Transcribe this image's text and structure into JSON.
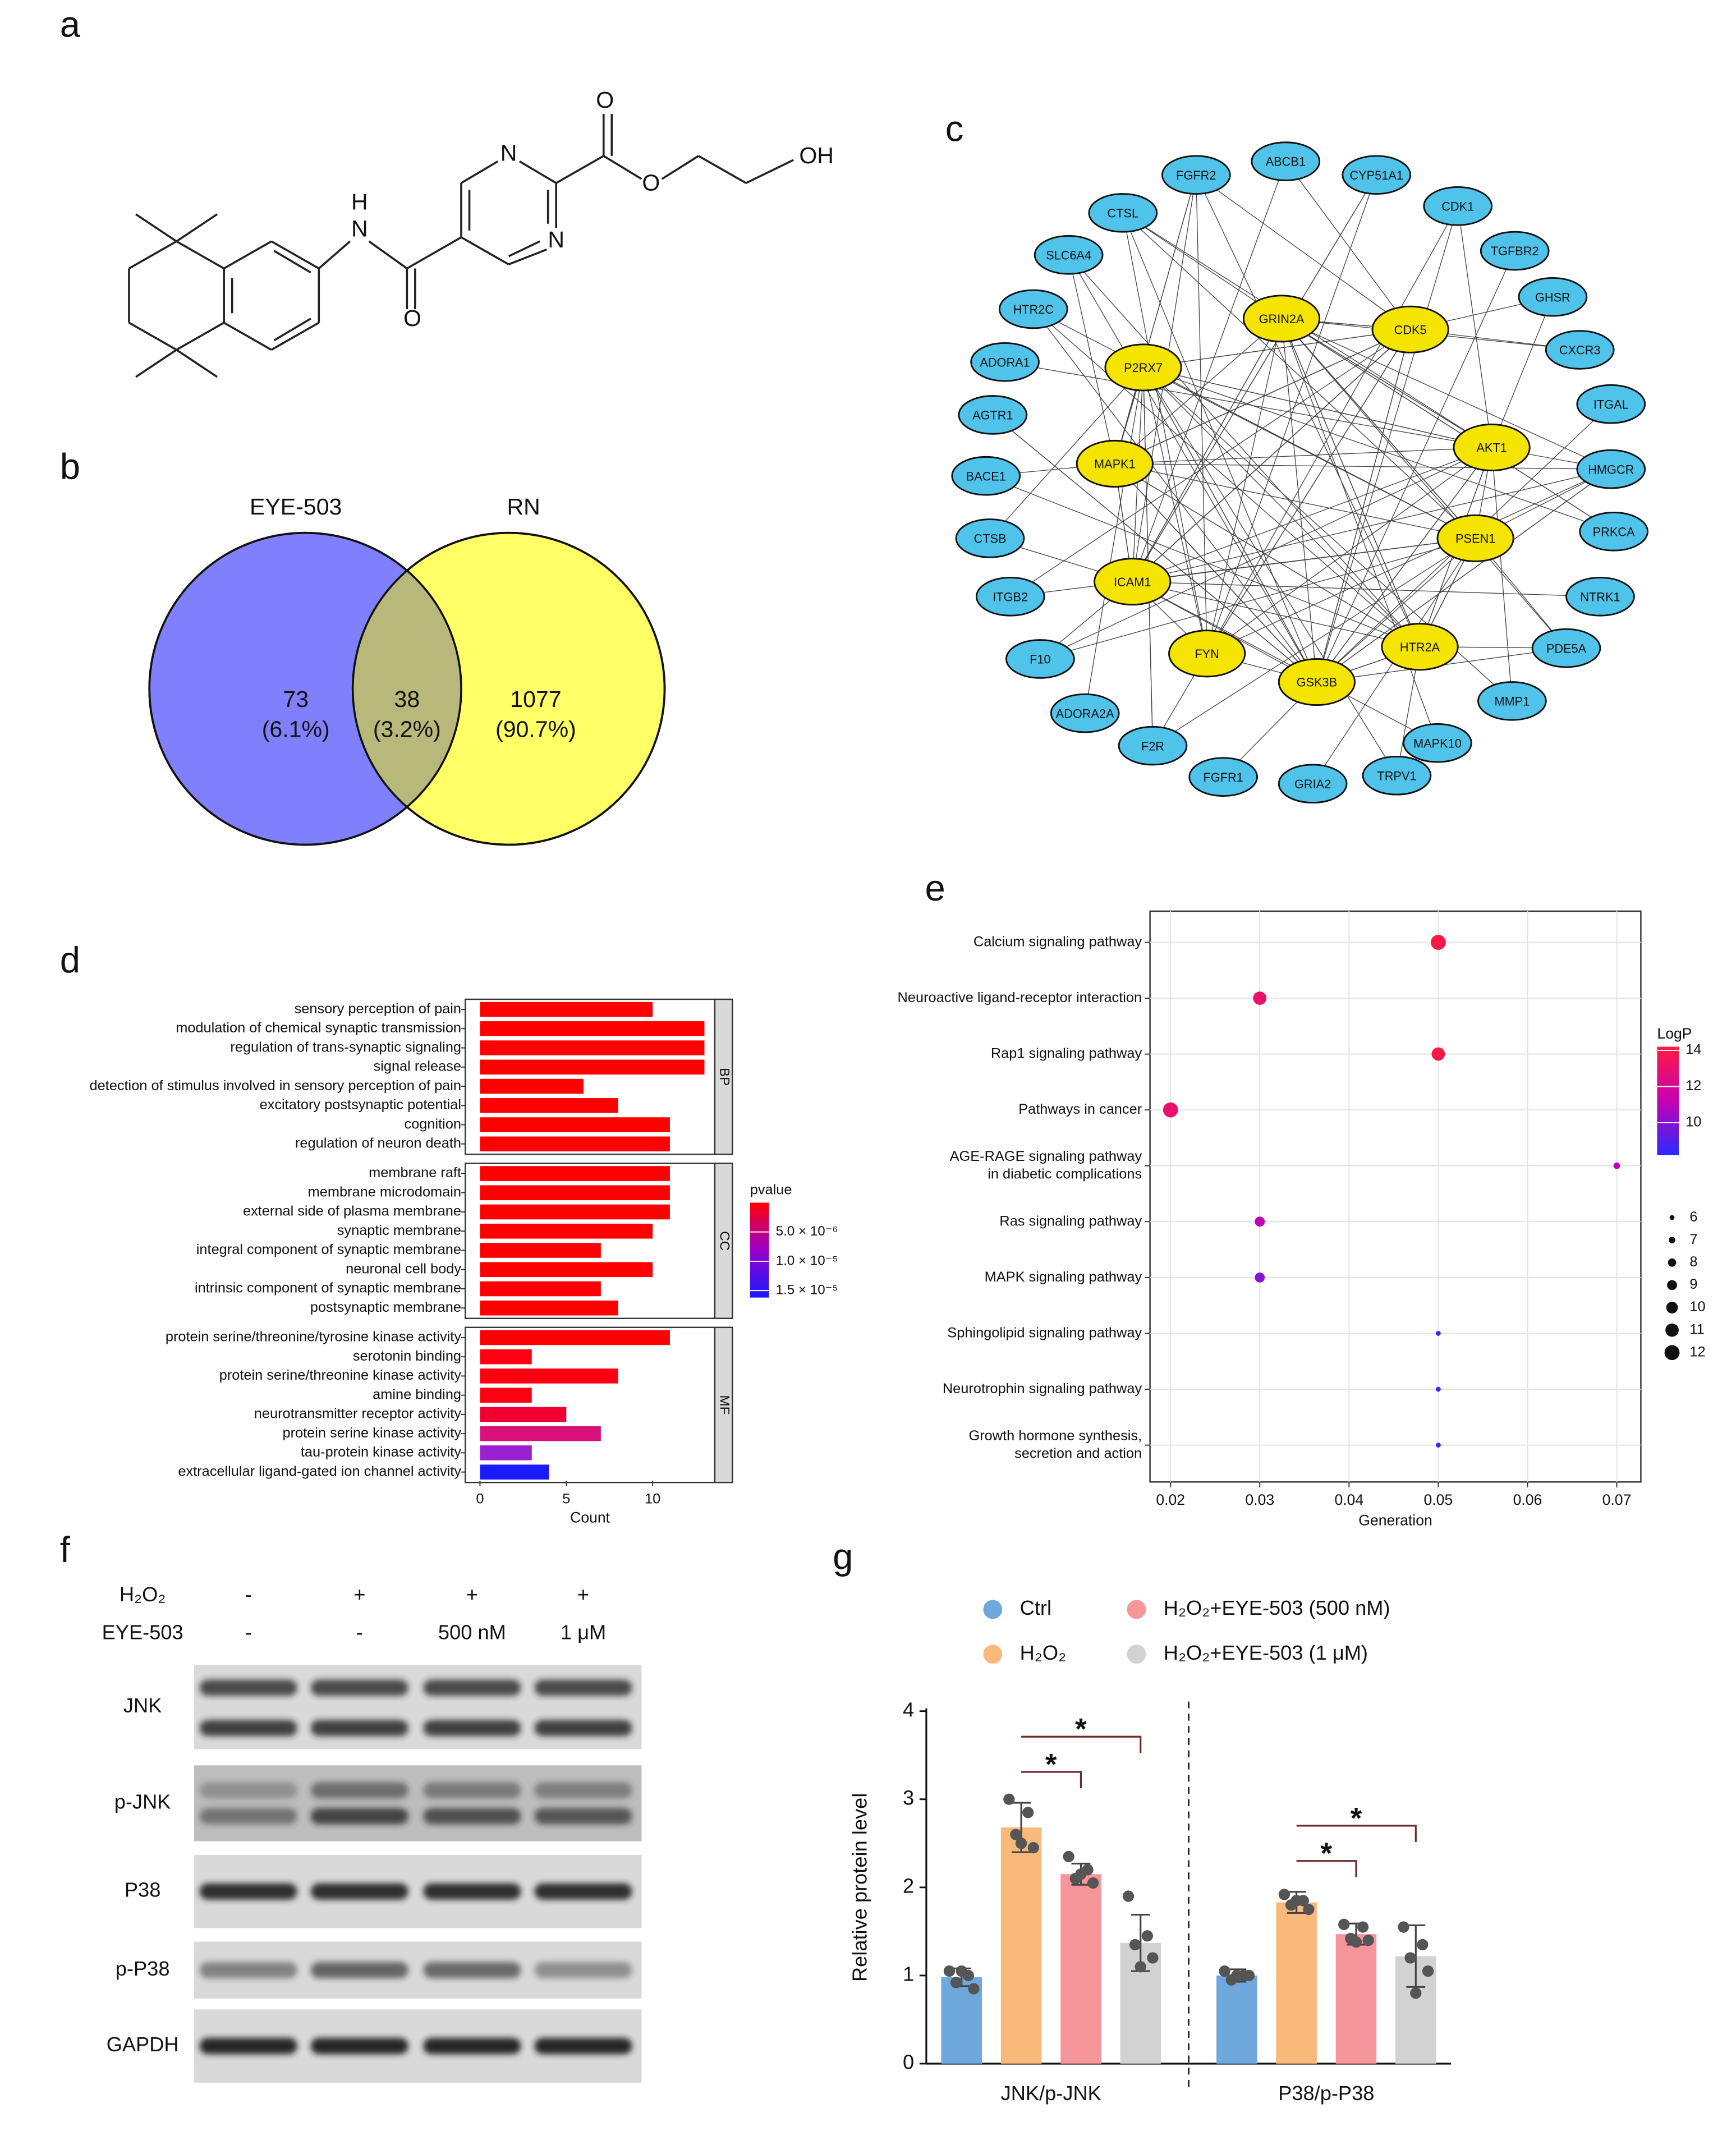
{
  "panel_a": {
    "label": "a",
    "atoms": [
      "H",
      "N",
      "O",
      "N",
      "N",
      "O",
      "O",
      "OH"
    ]
  },
  "venn": {
    "label": "b",
    "sets": [
      {
        "name": "EYE-503",
        "color": "#8080ff"
      },
      {
        "name": "RN",
        "color": "#ffff66"
      }
    ],
    "overlap_color": "#b8b87a",
    "values": [
      73,
      38,
      1077
    ],
    "percent_labels": [
      "(6.1%)",
      "(3.2%)",
      "(90.7%)"
    ]
  },
  "network": {
    "label": "c",
    "node_color": "#4fc3ea",
    "hub_color": "#f5e400",
    "nodes": [
      "ABCB1",
      "CYP51A1",
      "CDK1",
      "TGFBR2",
      "GHSR",
      "CXCR3",
      "ITGAL",
      "HMGCR",
      "PRKCA",
      "NTRK1",
      "PDE5A",
      "MMP1",
      "MAPK10",
      "TRPV1",
      "GRIA2",
      "FGFR1",
      "F2R",
      "ADORA2A",
      "F10",
      "ITGB2",
      "CTSB",
      "BACE1",
      "AGTR1",
      "ADORA1",
      "HTR2C",
      "SLC6A4",
      "CTSL",
      "FGFR2"
    ],
    "hub_nodes": [
      "GRIN2A",
      "CDK5",
      "P2RX7",
      "AKT1",
      "MAPK1",
      "PSEN1",
      "ICAM1",
      "FYN",
      "HTR2A",
      "GSK3B"
    ]
  },
  "chart_data": [
    {
      "type": "bar",
      "panel_label": "d",
      "orientation": "horizontal",
      "xlim": [
        -0.85,
        13.6
      ],
      "xticks": [
        0,
        5,
        10
      ],
      "xlabel": "Count",
      "facets": [
        {
          "name": "BP",
          "categories": [
            "sensory perception of pain",
            "modulation of chemical synaptic transmission",
            "regulation of trans-synaptic signaling",
            "signal release",
            "detection of stimulus involved in sensory perception of pain",
            "excitatory postsynaptic potential",
            "cognition",
            "regulation of neuron death"
          ],
          "values": [
            10,
            13,
            13,
            13,
            6,
            8,
            11,
            11
          ],
          "colors": [
            "#ff0000",
            "#ff0000",
            "#ff0000",
            "#ff0000",
            "#ff0000",
            "#ff0000",
            "#ff0000",
            "#ff0000"
          ]
        },
        {
          "name": "CC",
          "categories": [
            "membrane raft",
            "membrane microdomain",
            "external side of plasma membrane",
            "synaptic membrane",
            "integral component of synaptic membrane",
            "neuronal cell body",
            "intrinsic component of synaptic membrane",
            "postsynaptic membrane"
          ],
          "values": [
            11,
            11,
            11,
            10,
            7,
            10,
            7,
            8
          ],
          "colors": [
            "#ff0000",
            "#ff0000",
            "#ff0000",
            "#ff0000",
            "#ff0000",
            "#ff0000",
            "#ff0000",
            "#ff0000"
          ]
        },
        {
          "name": "MF",
          "categories": [
            "protein serine/threonine/tyrosine kinase activity",
            "serotonin binding",
            "protein serine/threonine kinase activity",
            "amine binding",
            "neurotransmitter receptor activity",
            "protein serine kinase activity",
            "tau-protein kinase activity",
            "extracellular ligand-gated ion channel activity"
          ],
          "values": [
            11,
            3,
            8,
            3,
            5,
            7,
            3,
            4
          ],
          "colors": [
            "#ff0000",
            "#ff0010",
            "#ff0010",
            "#ff0010",
            "#f00030",
            "#d8107a",
            "#9a1fd0",
            "#1a1aff"
          ]
        }
      ],
      "legend": {
        "title": "pvalue",
        "lim": [
          0,
          1.62e-05
        ],
        "colors": [
          "#ff0000",
          "#9a00cc",
          "#1a1aff"
        ],
        "ticks": [
          {
            "value": 5e-06,
            "label": "5.0 × 10⁻⁶"
          },
          {
            "value": 1e-05,
            "label": "1.0 × 10⁻⁵"
          },
          {
            "value": 1.5e-05,
            "label": "1.5 × 10⁻⁵"
          }
        ]
      }
    },
    {
      "type": "scatter",
      "panel_label": "e",
      "grid": true,
      "xlim": [
        0.0177,
        0.0727
      ],
      "xticks": [
        0.02,
        0.03,
        0.04,
        0.05,
        0.06,
        0.07
      ],
      "xlabel": "Generation",
      "categories": [
        "Calcium signaling pathway",
        "Neuroactive ligand-receptor interaction",
        "Rap1 signaling pathway",
        "Pathways in cancer",
        "AGE-RAGE signaling pathway\nin diabetic complications",
        "Ras signaling pathway",
        "MAPK signaling pathway",
        "Sphingolipid signaling pathway",
        "Neurotrophin signaling pathway",
        "Growth hormone synthesis,\nsecretion and action"
      ],
      "x": [
        0.05,
        0.03,
        0.05,
        0.02,
        0.07,
        0.03,
        0.03,
        0.05,
        0.05,
        0.05
      ],
      "sizes": [
        12,
        11,
        11,
        12,
        7,
        9,
        9,
        6,
        6,
        6
      ],
      "logp": [
        14,
        13,
        14,
        13,
        11,
        11,
        10,
        8.3,
        8.3,
        8.3
      ],
      "color_legend": {
        "title": "LogP",
        "lim": [
          8.2,
          14.2
        ],
        "ticks": [
          14,
          12,
          10
        ],
        "colors": [
          "#ff1a40",
          "#c800b4",
          "#2a2aff"
        ]
      },
      "size_legend": [
        6,
        7,
        8,
        9,
        10,
        11,
        12
      ]
    },
    {
      "type": "bar",
      "panel_label": "g",
      "ylim": [
        0,
        4
      ],
      "yticks": [
        0,
        1,
        2,
        3,
        4
      ],
      "ylabel": "Relative protein level",
      "categories": [
        "JNK/p-JNK",
        "P38/p-P38"
      ],
      "series": [
        {
          "name": "Ctrl",
          "color": "#6fa8dc",
          "values": [
            0.98,
            1.0
          ],
          "error": [
            0.1,
            0.07
          ],
          "points": [
            [
              1.05,
              1.0,
              0.92,
              0.85,
              1.05
            ],
            [
              1.05,
              1.0,
              0.95,
              1.0,
              1.0
            ]
          ]
        },
        {
          "name": "H₂O₂",
          "color": "#f9b97a",
          "values": [
            2.68,
            1.83
          ],
          "error": [
            0.28,
            0.12
          ],
          "points": [
            [
              3.0,
              2.85,
              2.6,
              2.45,
              2.5
            ],
            [
              1.92,
              1.85,
              1.8,
              1.75,
              1.85
            ]
          ]
        },
        {
          "name": "H₂O₂+EYE-503 (500 nM)",
          "color": "#f7969a",
          "values": [
            2.15,
            1.47
          ],
          "error": [
            0.12,
            0.12
          ],
          "points": [
            [
              2.35,
              2.2,
              2.1,
              2.05,
              2.15
            ],
            [
              1.58,
              1.55,
              1.42,
              1.4,
              1.38
            ]
          ]
        },
        {
          "name": "H₂O₂+EYE-503 (1 μM)",
          "color": "#d2d2d2",
          "values": [
            1.37,
            1.22
          ],
          "error": [
            0.32,
            0.35
          ],
          "points": [
            [
              1.9,
              1.45,
              1.35,
              1.2,
              1.1
            ],
            [
              1.55,
              1.35,
              1.2,
              1.05,
              0.8
            ]
          ]
        }
      ],
      "significance": [
        {
          "label": "*",
          "category": 0,
          "series": [
            1,
            2
          ]
        },
        {
          "label": "*",
          "category": 0,
          "series": [
            1,
            3
          ]
        },
        {
          "label": "*",
          "category": 1,
          "series": [
            1,
            2
          ]
        },
        {
          "label": "*",
          "category": 1,
          "series": [
            1,
            3
          ]
        }
      ]
    }
  ],
  "blot": {
    "label": "f",
    "conditions": [
      {
        "name": "H₂O₂",
        "values": [
          "-",
          "+",
          "+",
          "+"
        ]
      },
      {
        "name": "EYE-503",
        "values": [
          "-",
          "-",
          "500 nM",
          "1 μM"
        ]
      }
    ],
    "rows": [
      "JNK",
      "p-JNK",
      "P38",
      "p-P38",
      "GAPDH"
    ]
  }
}
